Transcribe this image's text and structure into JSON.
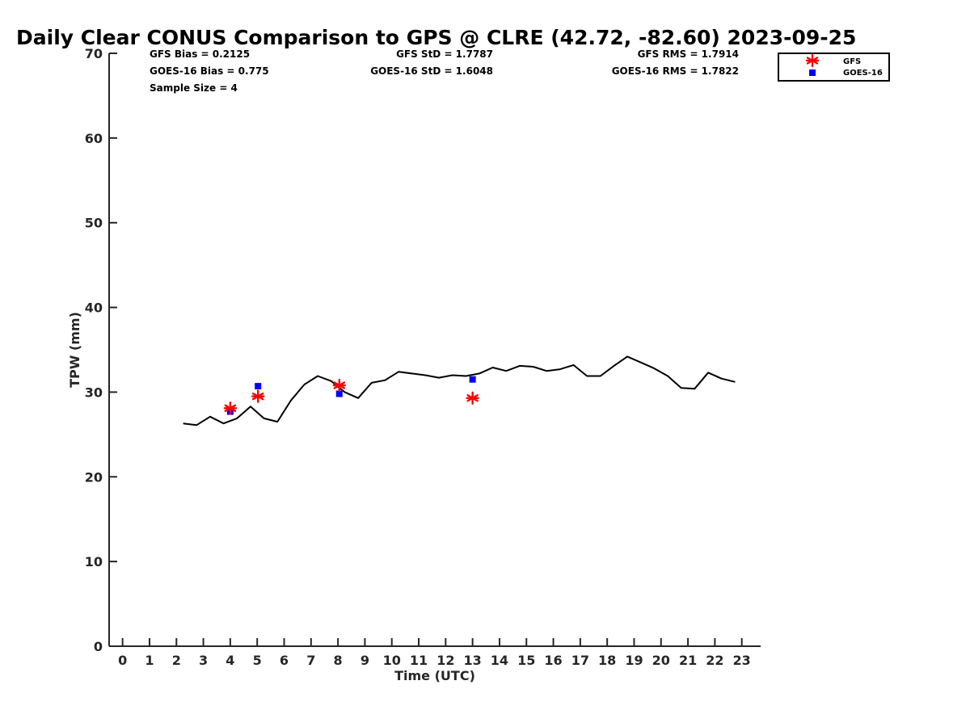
{
  "chart_data": {
    "type": "line",
    "title": "Daily Clear CONUS Comparison to GPS @ CLRE (42.72, -82.60) 2023-09-25",
    "xlabel": "Time (UTC)",
    "ylabel": "TPW (mm)",
    "xlim": [
      -0.5,
      23.7
    ],
    "ylim": [
      0,
      70
    ],
    "xticks": [
      "0",
      "1",
      "2",
      "3",
      "4",
      "5",
      "6",
      "7",
      "8",
      "9",
      "10",
      "11",
      "12",
      "13",
      "14",
      "15",
      "16",
      "17",
      "18",
      "19",
      "20",
      "21",
      "22",
      "23"
    ],
    "yticks": [
      "0",
      "10",
      "20",
      "30",
      "40",
      "50",
      "60",
      "70"
    ],
    "grid": false,
    "legend_position": "top-right",
    "stats": {
      "gfs_bias": "GFS Bias = 0.2125",
      "goes_bias": "GOES-16 Bias = 0.775",
      "sample_size": "Sample Size = 4",
      "gfs_std": "GFS StD = 1.7787",
      "goes_std": "GOES-16 StD = 1.6048",
      "gfs_rms": "GFS RMS = 1.7914",
      "goes_rms": "GOES-16 RMS = 1.7822"
    },
    "series": [
      {
        "type": "line",
        "color": "#000000",
        "x": [
          2.25,
          2.75,
          3.25,
          3.75,
          4.25,
          4.75,
          5.25,
          5.75,
          6.25,
          6.75,
          7.25,
          7.75,
          8.25,
          8.75,
          9.25,
          9.75,
          10.25,
          10.75,
          11.25,
          11.75,
          12.25,
          12.75,
          13.25,
          13.75,
          14.25,
          14.75,
          15.25,
          15.75,
          16.25,
          16.75,
          17.25,
          17.75,
          18.25,
          18.75,
          19.25,
          19.75,
          20.25,
          20.75,
          21.25,
          21.75,
          22.25,
          22.75
        ],
        "y": [
          26.3,
          26.1,
          27.1,
          26.3,
          26.9,
          28.3,
          26.9,
          26.5,
          29.0,
          30.9,
          31.9,
          31.3,
          30.0,
          29.3,
          31.1,
          31.4,
          32.4,
          32.2,
          32.0,
          31.7,
          32.0,
          31.9,
          32.2,
          32.9,
          32.5,
          33.1,
          33.0,
          32.5,
          32.7,
          33.2,
          31.9,
          31.9,
          33.1,
          34.2,
          33.5,
          32.8,
          31.9,
          30.5,
          30.4,
          32.3,
          31.6,
          31.2
        ]
      },
      {
        "name": "GFS",
        "type": "scatter",
        "marker": "asterisk",
        "color": "#ff0000",
        "x": [
          4.0,
          5.03,
          8.05,
          13.0
        ],
        "y": [
          28.1,
          29.5,
          30.8,
          29.3
        ]
      },
      {
        "name": "GOES-16",
        "type": "scatter",
        "marker": "square",
        "color": "#0000ff",
        "x": [
          4.0,
          5.03,
          8.05,
          13.0
        ],
        "y": [
          27.7,
          30.7,
          29.8,
          31.5
        ]
      }
    ]
  }
}
